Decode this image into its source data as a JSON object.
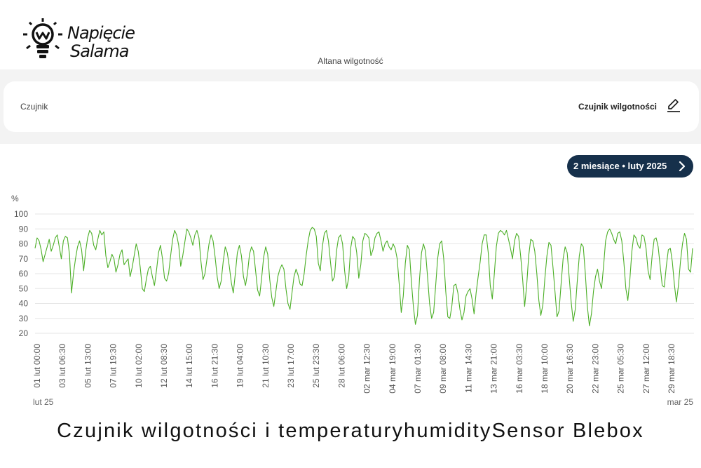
{
  "brand": {
    "name_line1": "Napięcie",
    "name_line2": "Salama",
    "logo_icon": "lightbulb-w-icon"
  },
  "header": {
    "subtitle": "Altana wilgotność"
  },
  "sensor_card": {
    "label": "Czujnik",
    "value": "Czujnik wilgotności",
    "edit_icon": "pencil-icon"
  },
  "range_button": {
    "label": "2 miesiące • luty 2025",
    "icon": "chevron-right-icon"
  },
  "colors": {
    "line": "#4caf27",
    "pill": "#16304b",
    "band": "#f3f3f3"
  },
  "chart_data": {
    "type": "line",
    "ylabel": "%",
    "ylim": [
      20,
      100
    ],
    "yticks": [
      100,
      90,
      80,
      70,
      60,
      50,
      40,
      30,
      20
    ],
    "grid": true,
    "xlim": [
      "01 lut 00:00",
      "01 mar 12:00"
    ],
    "xtick_labels": [
      "01 lut 00:00",
      "03 lut 06:30",
      "05 lut 13:00",
      "07 lut 19:30",
      "10 lut 02:00",
      "12 lut 08:30",
      "14 lut 15:00",
      "16 lut 21:30",
      "19 lut 04:00",
      "21 lut 10:30",
      "23 lut 17:00",
      "25 lut 23:30",
      "28 lut 06:00",
      "02 mar 12:30",
      "04 mar 19:00",
      "07 mar 01:30",
      "09 mar 08:00",
      "11 mar 14:30",
      "13 mar 21:00",
      "16 mar 03:30",
      "18 mar 10:00",
      "20 mar 16:30",
      "22 mar 23:00",
      "25 mar 05:30",
      "27 mar 12:00",
      "29 mar 18:30"
    ],
    "range_start_label": "lut 25",
    "range_end_label": "mar 25",
    "series": [
      {
        "values": [
          77,
          84,
          82,
          76,
          68,
          73,
          78,
          83,
          75,
          79,
          84,
          86,
          78,
          70,
          82,
          85,
          84,
          73,
          47,
          60,
          70,
          78,
          82,
          76,
          62,
          75,
          84,
          89,
          87,
          79,
          76,
          83,
          89,
          86,
          88,
          72,
          64,
          68,
          73,
          70,
          61,
          66,
          73,
          76,
          66,
          68,
          70,
          58,
          64,
          72,
          80,
          75,
          64,
          50,
          48,
          56,
          63,
          65,
          58,
          52,
          62,
          74,
          79,
          70,
          57,
          55,
          60,
          72,
          83,
          89,
          86,
          79,
          65,
          72,
          81,
          90,
          88,
          84,
          79,
          86,
          89,
          84,
          68,
          56,
          60,
          70,
          80,
          86,
          82,
          71,
          58,
          50,
          55,
          68,
          78,
          74,
          65,
          54,
          47,
          60,
          74,
          79,
          72,
          58,
          52,
          60,
          73,
          78,
          75,
          62,
          49,
          45,
          57,
          71,
          78,
          73,
          56,
          44,
          38,
          48,
          58,
          63,
          66,
          63,
          50,
          40,
          36,
          47,
          58,
          63,
          59,
          53,
          52,
          60,
          72,
          82,
          89,
          91,
          90,
          85,
          67,
          62,
          78,
          87,
          89,
          82,
          68,
          55,
          58,
          75,
          84,
          86,
          80,
          62,
          50,
          57,
          77,
          85,
          83,
          74,
          57,
          66,
          82,
          87,
          86,
          84,
          72,
          76,
          84,
          87,
          88,
          82,
          75,
          80,
          82,
          78,
          76,
          80,
          77,
          70,
          53,
          34,
          45,
          67,
          79,
          76,
          55,
          38,
          26,
          32,
          56,
          74,
          80,
          75,
          58,
          40,
          30,
          34,
          52,
          70,
          80,
          82,
          70,
          48,
          31,
          30,
          38,
          52,
          53,
          47,
          36,
          29,
          34,
          45,
          48,
          50,
          43,
          33,
          47,
          58,
          68,
          80,
          86,
          86,
          74,
          52,
          43,
          60,
          78,
          87,
          89,
          88,
          86,
          89,
          83,
          77,
          70,
          82,
          87,
          85,
          72,
          56,
          38,
          52,
          72,
          83,
          82,
          75,
          60,
          42,
          32,
          39,
          57,
          72,
          81,
          79,
          64,
          48,
          31,
          35,
          53,
          70,
          78,
          74,
          58,
          41,
          28,
          36,
          55,
          72,
          80,
          78,
          60,
          38,
          25,
          33,
          48,
          58,
          63,
          55,
          50,
          65,
          82,
          88,
          90,
          87,
          83,
          80,
          87,
          88,
          82,
          68,
          50,
          42,
          56,
          75,
          86,
          84,
          79,
          77,
          86,
          85,
          77,
          62,
          56,
          72,
          83,
          84,
          78,
          65,
          52,
          51,
          65,
          76,
          77,
          68,
          53,
          41,
          52,
          68,
          80,
          87,
          83,
          63,
          61,
          77
        ]
      }
    ]
  },
  "footer": {
    "caption": "Czujnik wilgotności i temperaturyhumiditySensor Blebox"
  }
}
